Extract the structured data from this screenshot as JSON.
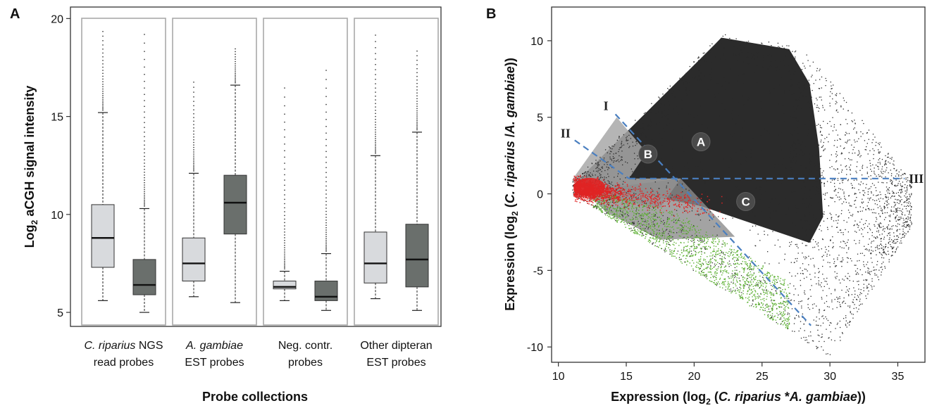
{
  "chart_data": [
    {
      "panel": "A",
      "type": "box",
      "ylabel_main": "Log",
      "ylabel_sub": "2",
      "ylabel_rest": " aCGH signal intensity",
      "xlabel": "Probe collections",
      "ylim": [
        4.5,
        20.3
      ],
      "yticks": [
        5,
        10,
        15,
        20
      ],
      "groups": [
        {
          "label_lines": [
            "C. riparius NGS",
            "read probes"
          ],
          "italic": "C. riparius",
          "boxes": [
            {
              "color": "#d8dadd",
              "min": 5.6,
              "q1": 7.3,
              "median": 8.8,
              "q3": 10.5,
              "max": 15.2,
              "outliers_to": 19.4
            },
            {
              "color": "#6a6f6c",
              "min": 5.0,
              "q1": 5.9,
              "median": 6.4,
              "q3": 7.7,
              "max": 10.3,
              "outliers_to": 19.4
            }
          ]
        },
        {
          "label_lines": [
            "A. gambiae",
            "EST probes"
          ],
          "italic": "A. gambiae",
          "boxes": [
            {
              "color": "#d8dadd",
              "min": 5.8,
              "q1": 6.6,
              "median": 7.5,
              "q3": 8.8,
              "max": 12.1,
              "outliers_to": 16.9
            },
            {
              "color": "#6a6f6c",
              "min": 5.5,
              "q1": 9.0,
              "median": 10.6,
              "q3": 12.0,
              "max": 16.6,
              "outliers_to": 18.5
            }
          ]
        },
        {
          "label_lines": [
            "Neg. contr.",
            "probes"
          ],
          "italic": "",
          "boxes": [
            {
              "color": "#d8dadd",
              "min": 5.6,
              "q1": 6.2,
              "median": 6.3,
              "q3": 6.6,
              "max": 7.1,
              "outliers_to": 16.8
            },
            {
              "color": "#6a6f6c",
              "min": 5.1,
              "q1": 5.6,
              "median": 5.8,
              "q3": 6.6,
              "max": 8.0,
              "outliers_to": 17.4
            }
          ]
        },
        {
          "label_lines": [
            "Other dipteran",
            "EST probes"
          ],
          "italic": "",
          "boxes": [
            {
              "color": "#d8dadd",
              "min": 5.7,
              "q1": 6.5,
              "median": 7.5,
              "q3": 9.1,
              "max": 13.0,
              "outliers_to": 19.3
            },
            {
              "color": "#6a6f6c",
              "min": 5.1,
              "q1": 6.3,
              "median": 7.7,
              "q3": 9.5,
              "max": 14.2,
              "outliers_to": 18.4
            }
          ]
        }
      ]
    },
    {
      "panel": "B",
      "type": "scatter",
      "xlabel_parts": [
        "Expression (log",
        "2",
        " (",
        "C. riparius",
        " *",
        "A. gambiae",
        "))"
      ],
      "ylabel_parts": [
        "Expression (log",
        "2",
        " (",
        "C. riparius",
        " /",
        "A. gambiae",
        "))"
      ],
      "xlim": [
        9.5,
        37.0
      ],
      "ylim": [
        -11.0,
        12.2
      ],
      "xticks": [
        10,
        15,
        20,
        25,
        30,
        35
      ],
      "yticks": [
        -10,
        -5,
        0,
        5,
        10
      ],
      "colors": {
        "dense": "#2b2b2b",
        "light": "#a8a8a8",
        "red": "#e02424",
        "green": "#5bb030",
        "line": "#4a7fc0"
      },
      "lines": [
        {
          "label": "I",
          "from": [
            14.2,
            5.2
          ],
          "to": [
            28.6,
            -8.6
          ]
        },
        {
          "label": "II",
          "from": [
            11.2,
            3.5
          ],
          "to": [
            15.2,
            1.0
          ]
        },
        {
          "label": "III",
          "from": [
            15.2,
            1.0
          ],
          "to": [
            35.5,
            1.0
          ]
        }
      ],
      "regions": [
        {
          "label": "A",
          "x": 20.5,
          "y": 3.4
        },
        {
          "label": "B",
          "x": 16.6,
          "y": 2.6
        },
        {
          "label": "C",
          "x": 23.8,
          "y": -0.5
        }
      ]
    }
  ]
}
